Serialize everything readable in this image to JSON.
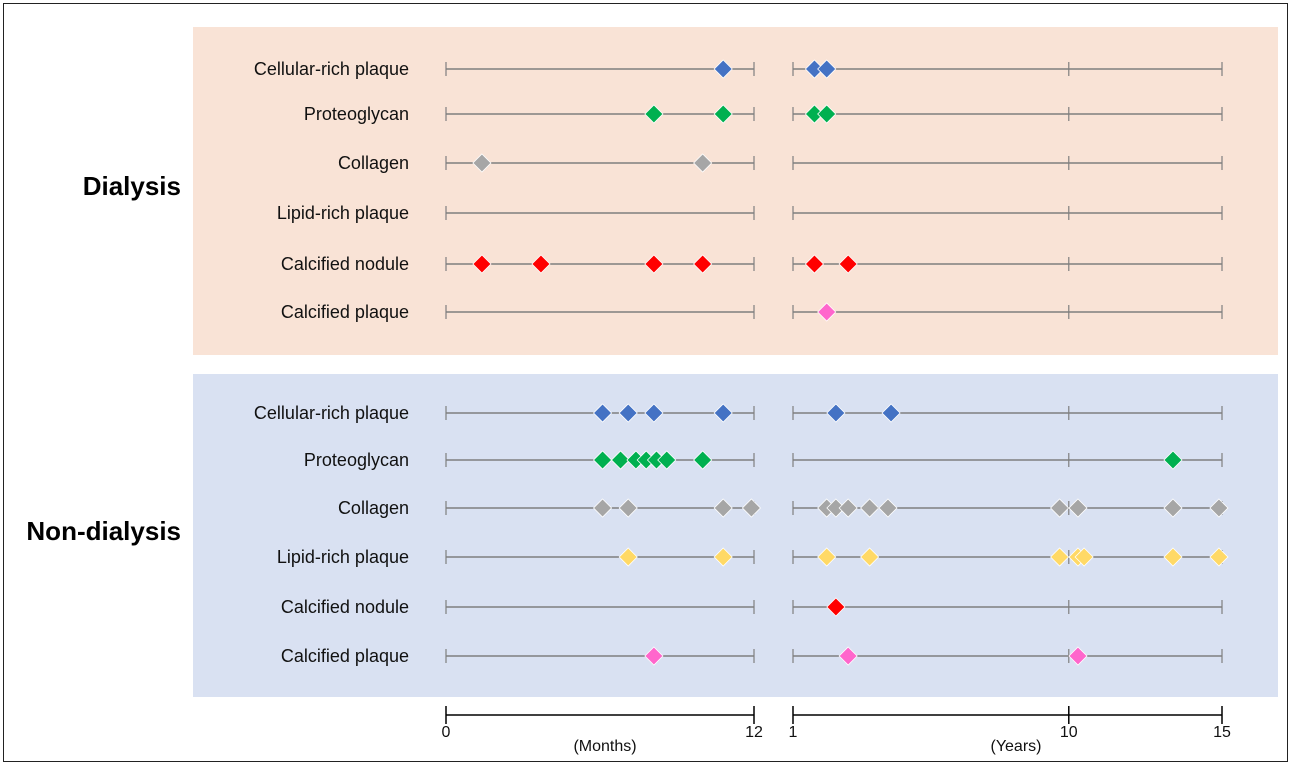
{
  "chart_data": {
    "type": "scatter",
    "groups": [
      {
        "label": "Dialysis",
        "background": "#f9e3d6",
        "rows": [
          {
            "label": "Cellular-rich plaque",
            "color": "#4472c4",
            "months": [
              10.8
            ],
            "years": [
              1.7,
              2.1
            ]
          },
          {
            "label": "Proteoglycan",
            "color": "#00b050",
            "months": [
              8.1,
              10.8
            ],
            "years": [
              1.7,
              2.1
            ]
          },
          {
            "label": "Collagen",
            "color": "#a6a6a6",
            "months": [
              1.4,
              10.0
            ],
            "years": []
          },
          {
            "label": "Lipid-rich plaque",
            "color": "#ffd966",
            "months": [],
            "years": []
          },
          {
            "label": "Calcified nodule",
            "color": "#ff0000",
            "months": [
              1.4,
              3.7,
              8.1,
              10.0
            ],
            "years": [
              1.7,
              2.8
            ]
          },
          {
            "label": "Calcified plaque",
            "color": "#ff66cc",
            "months": [],
            "years": [
              2.1
            ]
          }
        ]
      },
      {
        "label": "Non-dialysis",
        "background": "#d9e1f2",
        "rows": [
          {
            "label": "Cellular-rich plaque",
            "color": "#4472c4",
            "months": [
              6.1,
              7.1,
              8.1,
              10.8
            ],
            "years": [
              2.4,
              4.2
            ]
          },
          {
            "label": "Proteoglycan",
            "color": "#00b050",
            "months": [
              6.1,
              6.8,
              7.4,
              7.8,
              8.2,
              8.6,
              10.0
            ],
            "years": [
              13.4
            ]
          },
          {
            "label": "Collagen",
            "color": "#a6a6a6",
            "months": [
              6.1,
              7.1,
              10.8,
              11.9
            ],
            "years": [
              2.1,
              2.4,
              2.8,
              3.5,
              4.1,
              9.7,
              10.3,
              13.4,
              14.9
            ]
          },
          {
            "label": "Lipid-rich plaque",
            "color": "#ffd966",
            "months": [
              7.1,
              10.8
            ],
            "years": [
              2.1,
              3.5,
              9.7,
              10.3,
              10.5,
              13.4,
              14.9
            ]
          },
          {
            "label": "Calcified nodule",
            "color": "#ff0000",
            "months": [],
            "years": [
              2.4
            ]
          },
          {
            "label": "Calcified plaque",
            "color": "#ff66cc",
            "months": [
              8.1
            ],
            "years": [
              2.8,
              10.3
            ]
          }
        ]
      }
    ],
    "months_axis": {
      "min": 0,
      "max": 12,
      "ticks": [
        "0",
        "12"
      ],
      "unit": "(Months)"
    },
    "years_axis": {
      "min": 1,
      "max": 15,
      "ticks": [
        "1",
        "10",
        "15"
      ],
      "unit": "(Years)",
      "mid_tick": 10
    }
  }
}
